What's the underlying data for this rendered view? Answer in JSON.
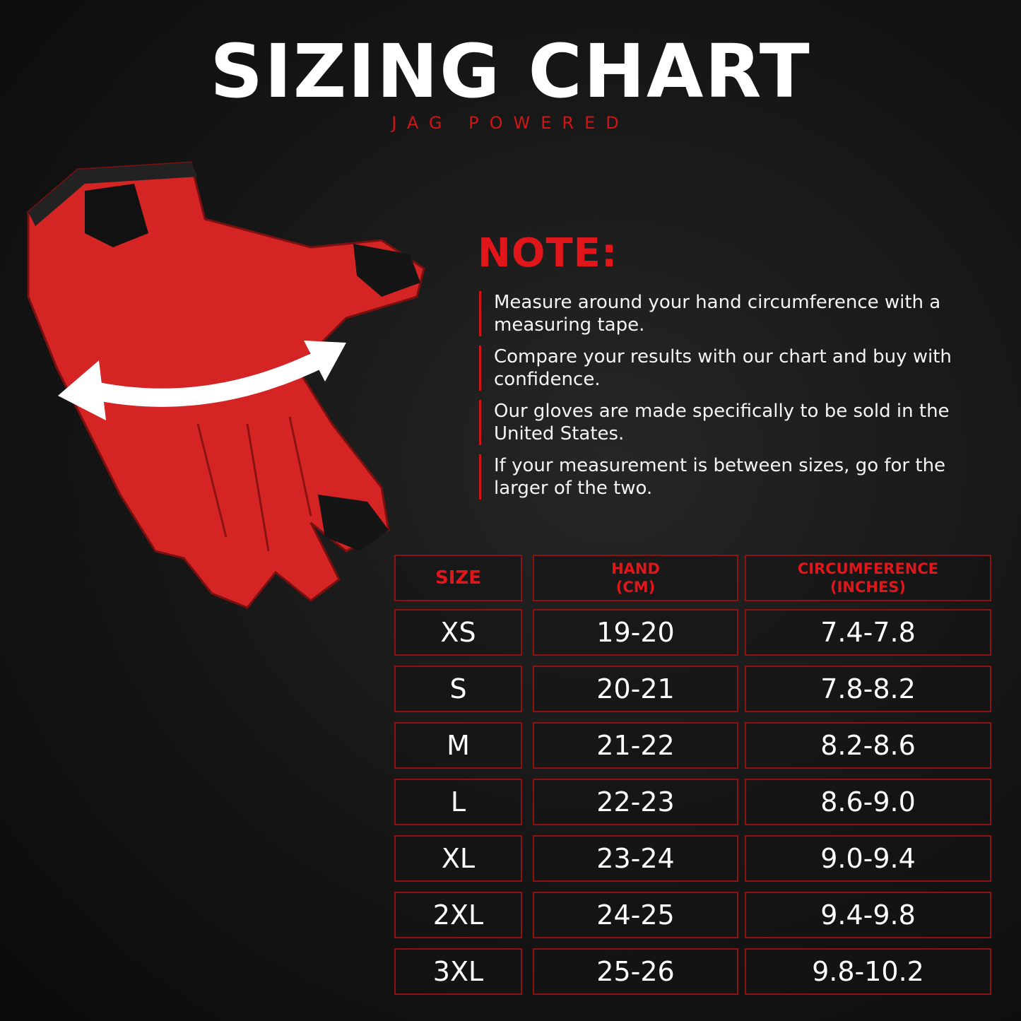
{
  "header": {
    "title": "SIZING CHART",
    "subtitle": "JAG POWERED"
  },
  "note": {
    "title": "NOTE:",
    "items": [
      "Measure around your hand circumference with a measuring tape.",
      "Compare your results with our chart and buy with confidence.",
      "Our gloves are made specifically to be sold in the United States.",
      "If  your measurement is between sizes, go for the larger of the two."
    ]
  },
  "table": {
    "headers": [
      "SIZE",
      "HAND (CM)",
      "CIRCUMFERENCE (INCHES)"
    ],
    "rows": [
      [
        "XS",
        "19-20",
        "7.4-7.8"
      ],
      [
        "S",
        "20-21",
        "7.8-8.2"
      ],
      [
        "M",
        "21-22",
        "8.2-8.6"
      ],
      [
        "L",
        "22-23",
        "8.6-9.0"
      ],
      [
        "XL",
        "23-24",
        "9.0-9.4"
      ],
      [
        "2XL",
        "24-25",
        "9.4-9.8"
      ],
      [
        "3XL",
        "25-26",
        "9.8-10.2"
      ]
    ]
  },
  "colors": {
    "accent": "#e0161b",
    "border": "#8a1414",
    "background": "#151515",
    "glove": "#d42424"
  },
  "illustration": {
    "icon": "red-glove-with-measuring-arrow"
  }
}
